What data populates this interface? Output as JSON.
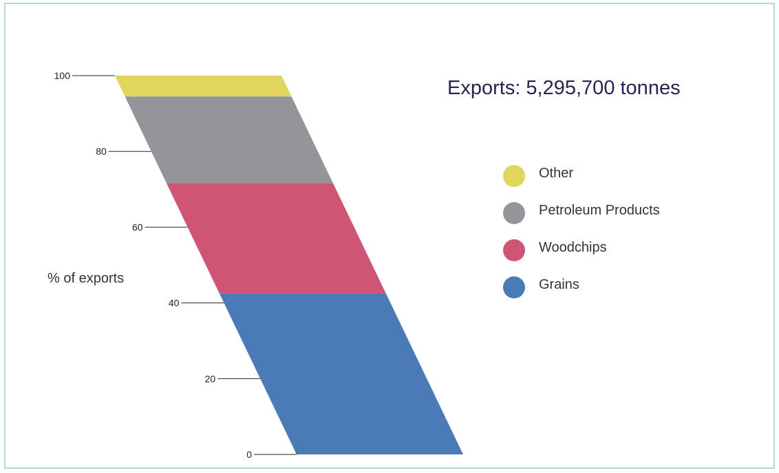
{
  "chart_data": {
    "type": "bar",
    "title": "Exports: 5,295,700 tonnes",
    "ylabel": "% of exports",
    "ylim": [
      0,
      100
    ],
    "yticks": [
      0,
      20,
      40,
      60,
      80,
      100
    ],
    "stack_order_bottom_to_top": [
      "Grains",
      "Woodchips",
      "Petroleum Products",
      "Other"
    ],
    "series": [
      {
        "name": "Grains",
        "value": 42.5,
        "color": "#4a7bb7"
      },
      {
        "name": "Woodchips",
        "value": 29,
        "color": "#cf5575"
      },
      {
        "name": "Petroleum Products",
        "value": 23,
        "color": "#939598"
      },
      {
        "name": "Other",
        "value": 5.5,
        "color": "#e0d65b"
      }
    ],
    "legend": {
      "placement": "right",
      "order": [
        "Other",
        "Petroleum Products",
        "Woodchips",
        "Grains"
      ]
    }
  }
}
